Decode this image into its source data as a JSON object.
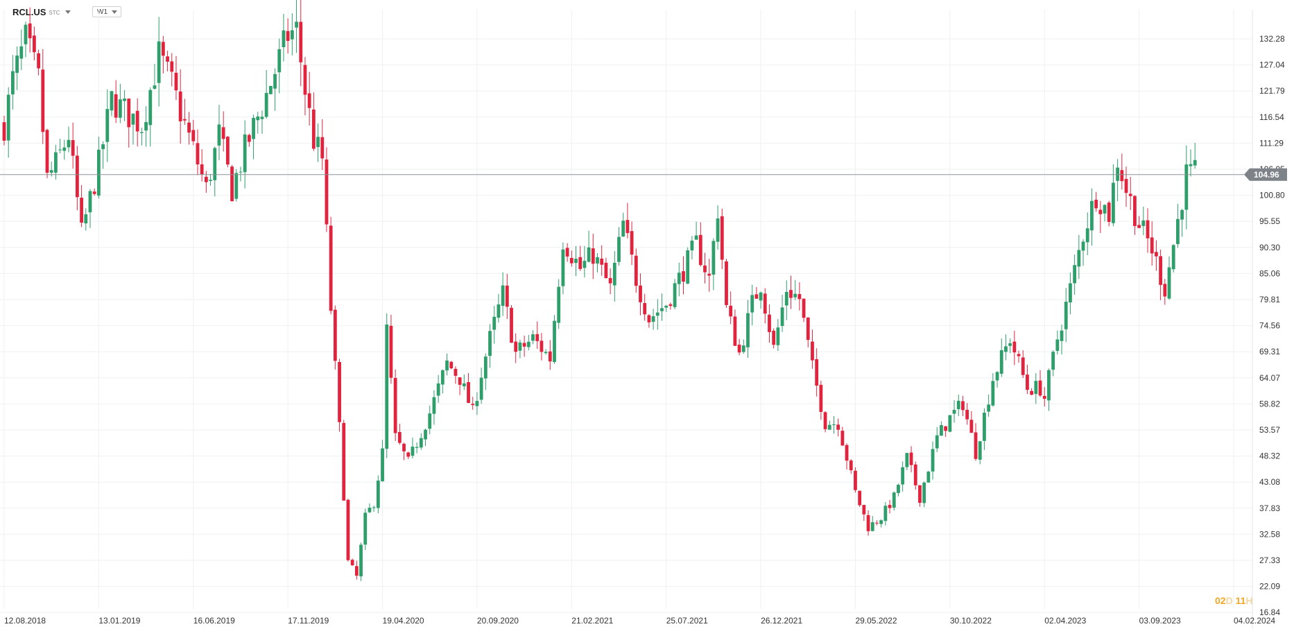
{
  "toolbar": {
    "symbol": "RCL.US",
    "symbol_suffix": "STC",
    "timeframe": "W1"
  },
  "countdown": {
    "days": "02",
    "days_unit": "D",
    "hours": "11",
    "hours_unit": "H"
  },
  "colors": {
    "up": "#2e9e6a",
    "down": "#e2233d",
    "grid": "#eef0f2",
    "price_line": "#8d9296",
    "price_tag": "#7d8388"
  },
  "chart_data": {
    "type": "candlestick",
    "title": "",
    "xlabel": "",
    "ylabel": "",
    "ylim": [
      16.84,
      137.53
    ],
    "y_ticks": [
      "132.28",
      "127.04",
      "121.79",
      "116.54",
      "111.29",
      "106.05",
      "100.80",
      "95.55",
      "90.30",
      "85.06",
      "79.81",
      "74.56",
      "69.31",
      "64.07",
      "58.82",
      "53.57",
      "48.32",
      "43.08",
      "37.83",
      "32.58",
      "27.33",
      "22.09",
      "16.84"
    ],
    "x_ticks": [
      "12.08.2018",
      "13.01.2019",
      "16.06.2019",
      "17.11.2019",
      "19.04.2020",
      "20.09.2020",
      "21.02.2021",
      "25.07.2021",
      "26.12.2021",
      "29.05.2022",
      "30.10.2022",
      "02.04.2023",
      "03.09.2023",
      "04.02.2024"
    ],
    "last_price": "104.96",
    "price_path": [
      [
        "12.08.2018",
        115
      ],
      [
        "26.08.2018",
        124
      ],
      [
        "16.09.2018",
        132
      ],
      [
        "07.10.2018",
        124
      ],
      [
        "21.10.2018",
        104
      ],
      [
        "04.11.2018",
        107
      ],
      [
        "25.11.2018",
        113
      ],
      [
        "16.12.2018",
        93
      ],
      [
        "13.01.2019",
        107
      ],
      [
        "03.02.2019",
        120
      ],
      [
        "03.03.2019",
        117
      ],
      [
        "24.03.2019",
        115
      ],
      [
        "21.04.2019",
        129
      ],
      [
        "12.05.2019",
        123
      ],
      [
        "02.06.2019",
        115
      ],
      [
        "16.06.2019",
        110
      ],
      [
        "07.07.2019",
        102
      ],
      [
        "28.07.2019",
        113
      ],
      [
        "18.08.2019",
        102
      ],
      [
        "08.09.2019",
        110
      ],
      [
        "13.10.2019",
        121
      ],
      [
        "17.11.2019",
        133
      ],
      [
        "01.12.2019",
        134
      ],
      [
        "15.12.2019",
        122
      ],
      [
        "29.12.2019",
        112
      ],
      [
        "12.01.2020",
        108
      ],
      [
        "26.01.2020",
        78
      ],
      [
        "09.02.2020",
        54
      ],
      [
        "23.02.2020",
        27
      ],
      [
        "08.03.2020",
        24
      ],
      [
        "22.03.2020",
        36
      ],
      [
        "05.04.2020",
        39
      ],
      [
        "19.04.2020",
        49
      ],
      [
        "26.04.2020",
        74
      ],
      [
        "10.05.2020",
        52
      ],
      [
        "31.05.2020",
        47
      ],
      [
        "05.07.2020",
        57
      ],
      [
        "02.08.2020",
        67
      ],
      [
        "23.08.2020",
        64
      ],
      [
        "13.09.2020",
        57
      ],
      [
        "27.09.2020",
        65
      ],
      [
        "11.10.2020",
        72
      ],
      [
        "01.11.2020",
        81
      ],
      [
        "22.11.2020",
        69
      ],
      [
        "20.12.2020",
        72
      ],
      [
        "17.01.2021",
        68
      ],
      [
        "07.02.2021",
        92
      ],
      [
        "07.03.2021",
        86
      ],
      [
        "28.03.2021",
        89
      ],
      [
        "25.04.2021",
        82
      ],
      [
        "16.05.2021",
        95
      ],
      [
        "06.06.2021",
        84
      ],
      [
        "27.06.2021",
        76
      ],
      [
        "25.07.2021",
        79
      ],
      [
        "15.08.2021",
        84
      ],
      [
        "12.09.2021",
        91
      ],
      [
        "03.10.2021",
        84
      ],
      [
        "17.10.2021",
        98
      ],
      [
        "31.10.2021",
        78
      ],
      [
        "21.11.2021",
        69
      ],
      [
        "12.12.2021",
        79
      ],
      [
        "26.12.2021",
        83
      ],
      [
        "16.01.2022",
        70
      ],
      [
        "06.02.2022",
        82
      ],
      [
        "27.02.2022",
        80
      ],
      [
        "20.03.2022",
        66
      ],
      [
        "10.04.2022",
        55
      ],
      [
        "01.05.2022",
        55
      ],
      [
        "29.05.2022",
        41
      ],
      [
        "19.06.2022",
        34
      ],
      [
        "10.07.2022",
        36
      ],
      [
        "31.07.2022",
        40
      ],
      [
        "21.08.2022",
        48
      ],
      [
        "11.09.2022",
        40
      ],
      [
        "09.10.2022",
        52
      ],
      [
        "30.10.2022",
        56
      ],
      [
        "20.11.2022",
        59
      ],
      [
        "11.12.2022",
        49
      ],
      [
        "08.01.2023",
        64
      ],
      [
        "05.02.2023",
        72
      ],
      [
        "05.03.2023",
        62
      ],
      [
        "26.03.2023",
        62
      ],
      [
        "02.04.2023",
        60
      ],
      [
        "23.04.2023",
        72
      ],
      [
        "14.05.2023",
        82
      ],
      [
        "04.06.2023",
        93
      ],
      [
        "25.06.2023",
        101
      ],
      [
        "16.07.2023",
        97
      ],
      [
        "30.07.2023",
        108
      ],
      [
        "13.08.2023",
        102
      ],
      [
        "03.09.2023",
        95
      ],
      [
        "24.09.2023",
        90
      ],
      [
        "15.10.2023",
        82
      ],
      [
        "29.10.2023",
        91
      ],
      [
        "19.11.2023",
        105
      ],
      [
        "03.12.2023",
        105
      ]
    ]
  }
}
